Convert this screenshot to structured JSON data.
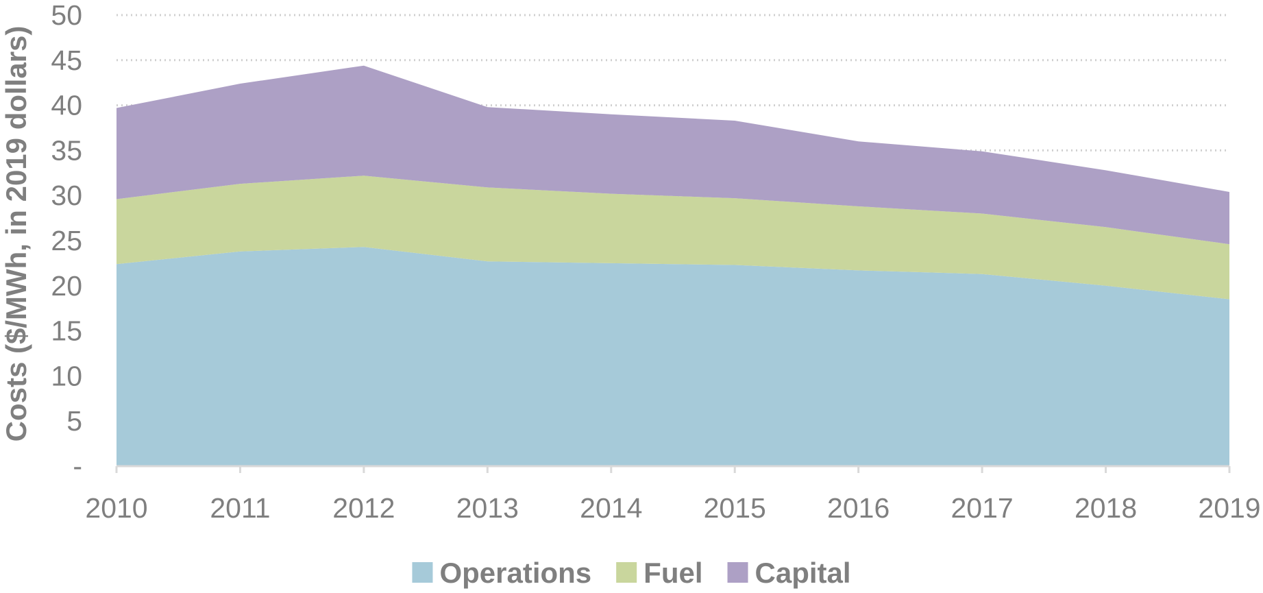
{
  "chart_data": {
    "type": "area",
    "stacked": true,
    "title": "",
    "xlabel": "",
    "ylabel": "Costs ($/MWh, in 2019 dollars)",
    "x": [
      "2010",
      "2011",
      "2012",
      "2013",
      "2014",
      "2015",
      "2016",
      "2017",
      "2018",
      "2019"
    ],
    "ylim": [
      0,
      50
    ],
    "y_ticks": [
      0,
      5,
      10,
      15,
      20,
      25,
      30,
      35,
      40,
      45,
      50
    ],
    "y_tick_labels": [
      "-",
      "5",
      "10",
      "15",
      "20",
      "25",
      "30",
      "35",
      "40",
      "45",
      "50"
    ],
    "grid": "horizontal dotted",
    "legend_position": "bottom",
    "series": [
      {
        "name": "Operations",
        "color": "#a6cad9",
        "values": [
          22.4,
          23.8,
          24.3,
          22.7,
          22.5,
          22.3,
          21.7,
          21.3,
          20.0,
          18.5
        ]
      },
      {
        "name": "Fuel",
        "color": "#c9d69d",
        "values": [
          7.2,
          7.5,
          7.9,
          8.2,
          7.7,
          7.4,
          7.1,
          6.7,
          6.5,
          6.1
        ]
      },
      {
        "name": "Capital",
        "color": "#ada0c5",
        "values": [
          10.1,
          11.1,
          12.2,
          8.9,
          8.8,
          8.6,
          7.2,
          6.9,
          6.3,
          5.8
        ]
      }
    ]
  }
}
